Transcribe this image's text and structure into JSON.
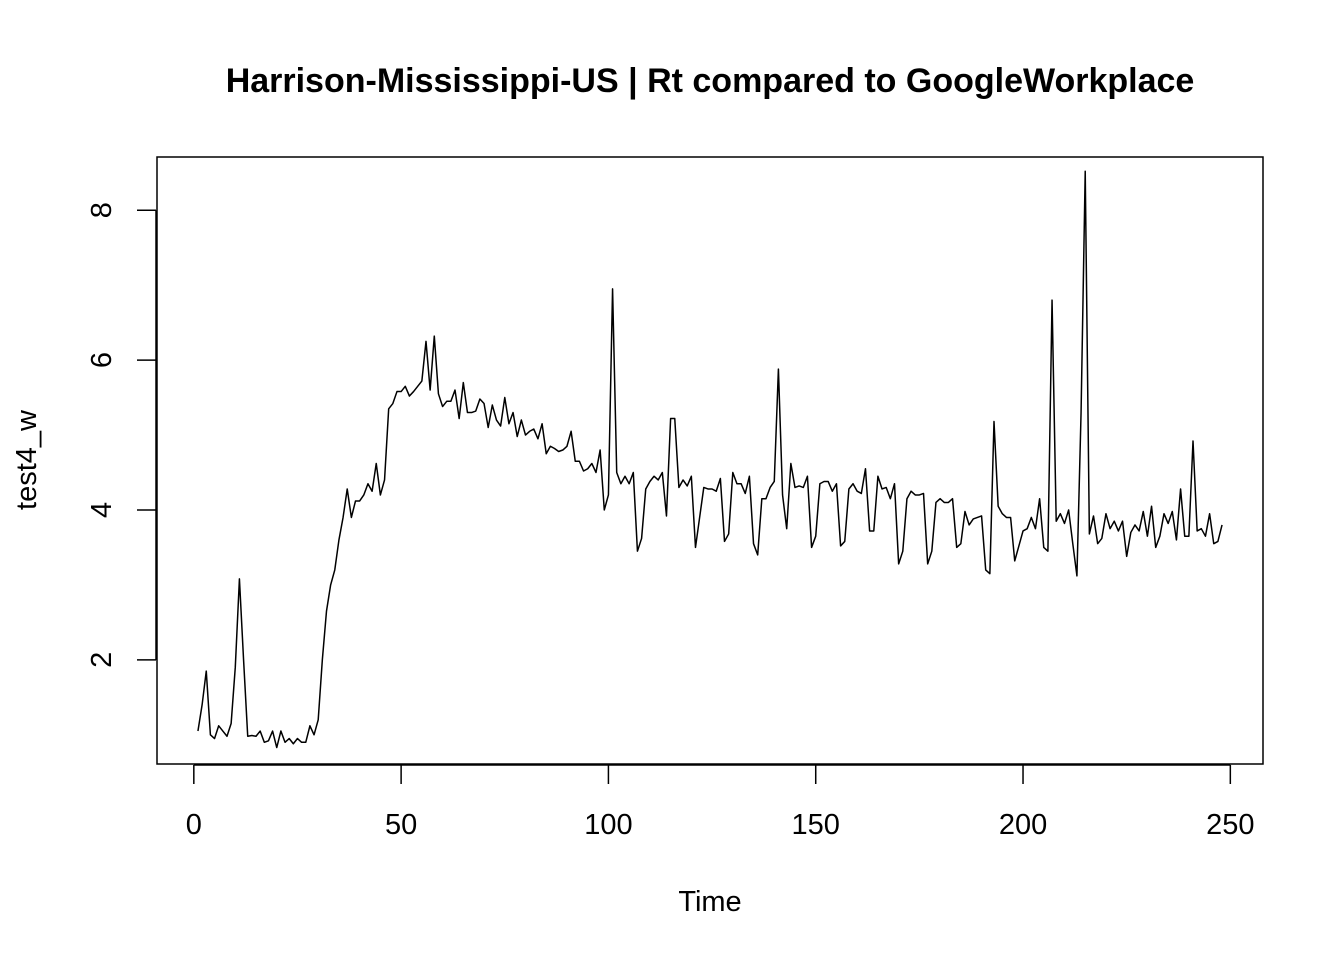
{
  "chart_data": {
    "type": "line",
    "title": "Harrison-Mississippi-US | Rt compared to GoogleWorkplace",
    "xlabel": "Time",
    "ylabel": "test4_w",
    "xlim": [
      -8.88,
      257.88
    ],
    "ylim": [
      0.61,
      8.71
    ],
    "xticks": [
      0,
      50,
      100,
      150,
      200,
      250
    ],
    "yticks": [
      2,
      4,
      6,
      8
    ],
    "grid": false,
    "legend": "none",
    "line_color": "#000000",
    "series": [
      {
        "x": [
          1,
          2,
          3,
          4,
          5,
          6,
          7,
          8,
          9,
          10,
          11,
          12,
          13,
          14,
          15,
          16,
          17,
          18,
          19,
          20,
          21,
          22,
          23,
          24,
          25,
          26,
          27,
          28,
          29,
          30,
          31,
          32,
          33,
          34,
          35,
          36,
          37,
          38,
          39,
          40,
          41,
          42,
          43,
          44,
          45,
          46,
          47,
          48,
          49,
          50,
          51,
          52,
          53,
          54,
          55,
          56,
          57,
          58,
          59,
          60,
          61,
          62,
          63,
          64,
          65,
          66,
          67,
          68,
          69,
          70,
          71,
          72,
          73,
          74,
          75,
          76,
          77,
          78,
          79,
          80,
          81,
          82,
          83,
          84,
          85,
          86,
          87,
          88,
          89,
          90,
          91,
          92,
          93,
          94,
          95,
          96,
          97,
          98,
          99,
          100,
          101,
          102,
          103,
          104,
          105,
          106,
          107,
          108,
          109,
          110,
          111,
          112,
          113,
          114,
          115,
          116,
          117,
          118,
          119,
          120,
          121,
          122,
          123,
          124,
          125,
          126,
          127,
          128,
          129,
          130,
          131,
          132,
          133,
          134,
          135,
          136,
          137,
          138,
          139,
          140,
          141,
          142,
          143,
          144,
          145,
          146,
          147,
          148,
          149,
          150,
          151,
          152,
          153,
          154,
          155,
          156,
          157,
          158,
          159,
          160,
          161,
          162,
          163,
          164,
          165,
          166,
          167,
          168,
          169,
          170,
          171,
          172,
          173,
          174,
          175,
          176,
          177,
          178,
          179,
          180,
          181,
          182,
          183,
          184,
          185,
          186,
          187,
          188,
          189,
          190,
          191,
          192,
          193,
          194,
          195,
          196,
          197,
          198,
          199,
          200,
          201,
          202,
          203,
          204,
          205,
          206,
          207,
          208,
          209,
          210,
          211,
          212,
          213,
          214,
          215,
          216,
          217,
          218,
          219,
          220,
          221,
          222,
          223,
          224,
          225,
          226,
          227,
          228,
          229,
          230,
          231,
          232,
          233,
          234,
          235,
          236,
          237,
          238,
          239,
          240,
          241,
          242,
          243,
          244,
          245,
          246,
          247,
          248
        ],
        "values": [
          1.05,
          1.4,
          1.85,
          1.0,
          0.95,
          1.12,
          1.05,
          0.98,
          1.15,
          1.9,
          3.08,
          2.0,
          0.98,
          0.99,
          0.98,
          1.05,
          0.9,
          0.92,
          1.05,
          0.83,
          1.05,
          0.9,
          0.95,
          0.88,
          0.95,
          0.9,
          0.9,
          1.12,
          1.0,
          1.2,
          2.0,
          2.65,
          3.0,
          3.2,
          3.6,
          3.9,
          4.28,
          3.9,
          4.12,
          4.12,
          4.2,
          4.35,
          4.25,
          4.62,
          4.2,
          4.4,
          5.35,
          5.42,
          5.58,
          5.58,
          5.65,
          5.52,
          5.58,
          5.65,
          5.72,
          6.25,
          5.6,
          6.32,
          5.55,
          5.38,
          5.45,
          5.45,
          5.6,
          5.22,
          5.7,
          5.3,
          5.3,
          5.32,
          5.48,
          5.42,
          5.1,
          5.4,
          5.2,
          5.12,
          5.5,
          5.15,
          5.3,
          4.98,
          5.2,
          5.0,
          5.05,
          5.08,
          4.95,
          5.15,
          4.75,
          4.85,
          4.82,
          4.78,
          4.8,
          4.85,
          5.05,
          4.65,
          4.65,
          4.52,
          4.55,
          4.62,
          4.5,
          4.8,
          4.0,
          4.2,
          6.95,
          4.5,
          4.35,
          4.45,
          4.35,
          4.5,
          3.45,
          3.62,
          4.28,
          4.38,
          4.45,
          4.4,
          4.5,
          3.92,
          5.22,
          5.22,
          4.3,
          4.4,
          4.32,
          4.45,
          3.5,
          3.9,
          4.3,
          4.28,
          4.28,
          4.25,
          4.42,
          3.58,
          3.68,
          4.5,
          4.35,
          4.35,
          4.22,
          4.45,
          3.55,
          3.4,
          4.15,
          4.15,
          4.3,
          4.38,
          5.88,
          4.2,
          3.75,
          4.62,
          4.3,
          4.32,
          4.3,
          4.45,
          3.5,
          3.65,
          4.35,
          4.38,
          4.38,
          4.25,
          4.35,
          3.52,
          3.58,
          4.28,
          4.35,
          4.25,
          4.22,
          4.55,
          3.72,
          3.72,
          4.45,
          4.28,
          4.3,
          4.15,
          4.35,
          3.28,
          3.45,
          4.15,
          4.25,
          4.2,
          4.2,
          4.22,
          3.28,
          3.45,
          4.1,
          4.15,
          4.1,
          4.1,
          4.15,
          3.5,
          3.55,
          3.98,
          3.8,
          3.88,
          3.9,
          3.92,
          3.2,
          3.15,
          5.18,
          4.05,
          3.95,
          3.9,
          3.9,
          3.32,
          3.52,
          3.72,
          3.75,
          3.9,
          3.75,
          4.15,
          3.5,
          3.45,
          6.8,
          3.85,
          3.95,
          3.82,
          4.0,
          3.55,
          3.12,
          5.3,
          8.52,
          3.68,
          3.92,
          3.55,
          3.62,
          3.95,
          3.75,
          3.85,
          3.72,
          3.85,
          3.38,
          3.7,
          3.8,
          3.72,
          3.98,
          3.65,
          4.05,
          3.5,
          3.65,
          3.95,
          3.82,
          3.98,
          3.6,
          4.28,
          3.65,
          3.65,
          4.92,
          3.72,
          3.75,
          3.65,
          3.95,
          3.55,
          3.58,
          3.8
        ]
      }
    ]
  }
}
